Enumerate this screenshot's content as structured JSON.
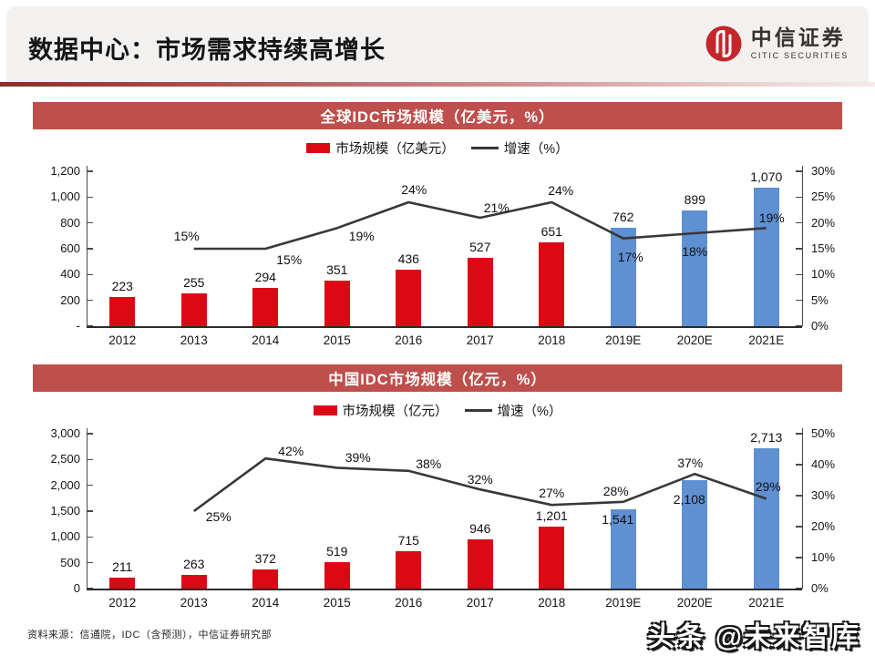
{
  "header": {
    "title": "数据中心：市场需求持续高增长",
    "logo": {
      "cn": "中信证券",
      "en": "CITIC SECURITIES",
      "brand_red": "#c5262c"
    }
  },
  "theme": {
    "section_bar_bg": "#be4f4c",
    "bar_actual_red": "#dc0914",
    "bar_estimate_blue": "#5e90d2",
    "growth_line": "#383838"
  },
  "chart_data": [
    {
      "type": "bar+line",
      "title": "全球IDC市场规模（亿美元，%）",
      "categories": [
        "2012",
        "2013",
        "2014",
        "2015",
        "2016",
        "2017",
        "2018",
        "2019E",
        "2020E",
        "2021E"
      ],
      "bar_series": {
        "name": "市场规模（亿美元）",
        "values": [
          223,
          255,
          294,
          351,
          436,
          527,
          651,
          762,
          899,
          1070
        ],
        "labels": [
          "223",
          "255",
          "294",
          "351",
          "436",
          "527",
          "651",
          "762",
          "899",
          "1,070"
        ],
        "estimate_from_index": 7
      },
      "line_series": {
        "name": "增速（%）",
        "values": [
          null,
          15,
          15,
          19,
          24,
          21,
          24,
          17,
          18,
          19
        ],
        "labels": [
          null,
          "15%",
          "15%",
          "19%",
          "24%",
          "21%",
          "24%",
          "17%",
          "18%",
          "19%"
        ]
      },
      "left_axis": {
        "max": 1200,
        "ticks": [
          "1,200",
          "1,000",
          "800",
          "600",
          "400",
          "200",
          "-"
        ]
      },
      "right_axis": {
        "max": 30,
        "ticks": [
          "30%",
          "25%",
          "20%",
          "15%",
          "10%",
          "5%",
          "0%"
        ]
      },
      "colors": {
        "bar_actual": "#dc0914",
        "bar_estimate": "#5e90d2",
        "line": "#383838"
      },
      "layout_hints": {
        "legend_position": "top",
        "grid": false,
        "line_label_offsets": [
          null,
          [
            -8,
            -14
          ],
          [
            26,
            12
          ],
          [
            27,
            9
          ],
          [
            6,
            -14
          ],
          [
            18,
            -11
          ],
          [
            10,
            -13
          ],
          [
            8,
            20
          ],
          [
            0,
            20
          ],
          [
            6,
            -11
          ]
        ],
        "bar_label_offsets": [
          null,
          null,
          null,
          null,
          null,
          null,
          null,
          null,
          null,
          null
        ]
      }
    },
    {
      "type": "bar+line",
      "title": "中国IDC市场规模（亿元，%）",
      "categories": [
        "2012",
        "2013",
        "2014",
        "2015",
        "2016",
        "2017",
        "2018",
        "2019E",
        "2020E",
        "2021E"
      ],
      "bar_series": {
        "name": "市场规模（亿元）",
        "values": [
          211,
          263,
          372,
          519,
          715,
          946,
          1201,
          1541,
          2108,
          2713
        ],
        "labels": [
          "211",
          "263",
          "372",
          "519",
          "715",
          "946",
          "1,201",
          "1,541",
          "2,108",
          "2,713"
        ],
        "estimate_from_index": 7
      },
      "line_series": {
        "name": "增速（%）",
        "values": [
          null,
          25,
          42,
          39,
          38,
          32,
          27,
          28,
          37,
          29
        ],
        "labels": [
          null,
          "25%",
          "42%",
          "39%",
          "38%",
          "32%",
          "27%",
          "28%",
          "37%",
          "29%"
        ]
      },
      "left_axis": {
        "max": 3000,
        "ticks": [
          "3,000",
          "2,500",
          "2,000",
          "1,500",
          "1,000",
          "500",
          "0"
        ]
      },
      "right_axis": {
        "max": 50,
        "ticks": [
          "50%",
          "40%",
          "30%",
          "20%",
          "10%",
          "0%"
        ]
      },
      "colors": {
        "bar_actual": "#dc0914",
        "bar_estimate": "#5e90d2",
        "line": "#383838"
      },
      "layout_hints": {
        "legend_position": "top",
        "grid": false,
        "line_label_offsets": [
          null,
          [
            27,
            6
          ],
          [
            28,
            -8
          ],
          [
            23,
            -11
          ],
          [
            22,
            -8
          ],
          [
            0,
            -11
          ],
          [
            0,
            -13
          ],
          [
            -8,
            -12
          ],
          [
            -5,
            -12
          ],
          [
            2,
            -13
          ]
        ],
        "bar_label_offsets": [
          null,
          null,
          null,
          null,
          null,
          null,
          null,
          [
            -6,
            23
          ],
          [
            -6,
            33
          ],
          null
        ]
      }
    }
  ],
  "footer": {
    "source": "资料来源：信通院，IDC（含预测），中信证券研究部",
    "watermark": "头条 @未来智库"
  }
}
